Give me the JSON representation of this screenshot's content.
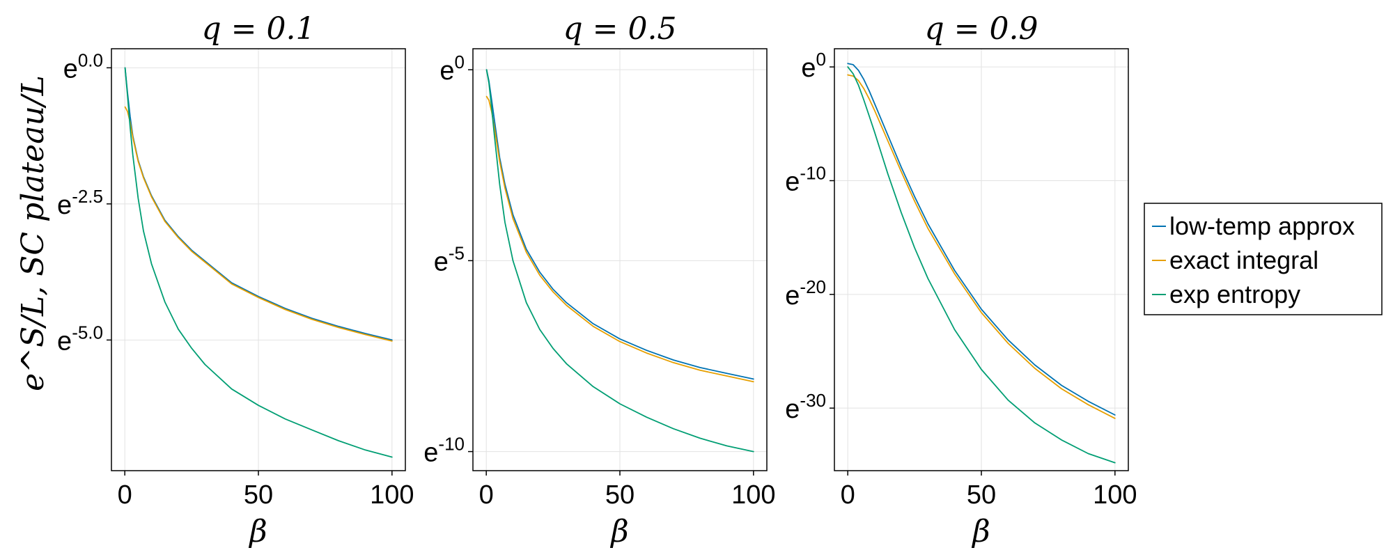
{
  "figure": {
    "ylabel": "e^S/L, SC plateau/L",
    "xlabel": "β"
  },
  "legend": {
    "placement": "right",
    "entries": [
      {
        "label": "low-temp approx",
        "color": "#0072b2"
      },
      {
        "label": "exact integral",
        "color": "#e69f00"
      },
      {
        "label": "exp entropy",
        "color": "#009e73"
      }
    ]
  },
  "chart_data": [
    {
      "type": "line",
      "title": "q = 0.1",
      "xlabel": "β",
      "xlim": [
        -5,
        105
      ],
      "ylim": [
        -7.4,
        0.35
      ],
      "xticks": [
        0,
        50,
        100
      ],
      "yticks": [
        {
          "value": 0,
          "label": "0.0"
        },
        {
          "value": -2.5,
          "label": "-2.5"
        },
        {
          "value": -5,
          "label": "-5.0"
        }
      ],
      "log_scale_base": "e",
      "grid": true,
      "series": [
        {
          "name": "low-temp approx",
          "color": "#0072b2",
          "x": [
            0.1,
            1,
            2,
            3,
            5,
            7,
            10,
            15,
            20,
            25,
            30,
            40,
            50,
            60,
            70,
            80,
            90,
            100
          ],
          "y": [
            0.0,
            -0.45,
            -0.9,
            -1.25,
            -1.7,
            -2.0,
            -2.35,
            -2.8,
            -3.1,
            -3.35,
            -3.55,
            -3.95,
            -4.2,
            -4.42,
            -4.6,
            -4.75,
            -4.88,
            -5.0
          ]
        },
        {
          "name": "exact integral",
          "color": "#e69f00",
          "x": [
            0.1,
            1,
            2,
            3,
            5,
            7,
            10,
            15,
            20,
            25,
            30,
            40,
            50,
            60,
            70,
            80,
            90,
            100
          ],
          "y": [
            -0.72,
            -0.8,
            -1.0,
            -1.28,
            -1.72,
            -2.02,
            -2.37,
            -2.82,
            -3.12,
            -3.37,
            -3.57,
            -3.97,
            -4.22,
            -4.44,
            -4.62,
            -4.77,
            -4.9,
            -5.02
          ]
        },
        {
          "name": "exp entropy",
          "color": "#009e73",
          "x": [
            0.1,
            1,
            2,
            3,
            5,
            7,
            10,
            15,
            20,
            25,
            30,
            40,
            50,
            60,
            70,
            80,
            90,
            100
          ],
          "y": [
            0.0,
            -0.5,
            -1.1,
            -1.6,
            -2.4,
            -3.0,
            -3.6,
            -4.3,
            -4.8,
            -5.15,
            -5.45,
            -5.9,
            -6.2,
            -6.45,
            -6.65,
            -6.85,
            -7.02,
            -7.15
          ]
        }
      ]
    },
    {
      "type": "line",
      "title": "q = 0.5",
      "xlabel": "β",
      "xlim": [
        -5,
        105
      ],
      "ylim": [
        -10.5,
        0.55
      ],
      "xticks": [
        0,
        50,
        100
      ],
      "yticks": [
        {
          "value": 0,
          "label": "0"
        },
        {
          "value": -5,
          "label": "-5"
        },
        {
          "value": -10,
          "label": "-10"
        }
      ],
      "log_scale_base": "e",
      "grid": true,
      "series": [
        {
          "name": "low-temp approx",
          "color": "#0072b2",
          "x": [
            0.1,
            1,
            2,
            3,
            5,
            7,
            10,
            15,
            20,
            25,
            30,
            40,
            50,
            60,
            70,
            80,
            90,
            100
          ],
          "y": [
            0.0,
            -0.3,
            -0.8,
            -1.3,
            -2.3,
            -3.0,
            -3.8,
            -4.7,
            -5.3,
            -5.75,
            -6.1,
            -6.65,
            -7.05,
            -7.35,
            -7.6,
            -7.8,
            -7.95,
            -8.1
          ]
        },
        {
          "name": "exact integral",
          "color": "#e69f00",
          "x": [
            0.1,
            1,
            2,
            3,
            5,
            7,
            10,
            15,
            20,
            25,
            30,
            40,
            50,
            60,
            70,
            80,
            90,
            100
          ],
          "y": [
            -0.7,
            -0.8,
            -1.1,
            -1.5,
            -2.4,
            -3.1,
            -3.9,
            -4.78,
            -5.38,
            -5.82,
            -6.17,
            -6.72,
            -7.12,
            -7.42,
            -7.67,
            -7.87,
            -8.02,
            -8.17
          ]
        },
        {
          "name": "exp entropy",
          "color": "#009e73",
          "x": [
            0.1,
            1,
            2,
            3,
            5,
            7,
            10,
            15,
            20,
            25,
            30,
            40,
            50,
            60,
            70,
            80,
            90,
            100
          ],
          "y": [
            0.0,
            -0.35,
            -1.0,
            -1.7,
            -3.0,
            -4.0,
            -5.0,
            -6.1,
            -6.8,
            -7.3,
            -7.7,
            -8.3,
            -8.75,
            -9.1,
            -9.4,
            -9.65,
            -9.85,
            -10.0
          ]
        }
      ]
    },
    {
      "type": "line",
      "title": "q = 0.9",
      "xlabel": "β",
      "xlim": [
        -5,
        105
      ],
      "ylim": [
        -35.5,
        1.6
      ],
      "xticks": [
        0,
        50,
        100
      ],
      "yticks": [
        {
          "value": 0,
          "label": "0"
        },
        {
          "value": -10,
          "label": "-10"
        },
        {
          "value": -20,
          "label": "-20"
        },
        {
          "value": -30,
          "label": "-30"
        }
      ],
      "log_scale_base": "e",
      "grid": true,
      "series": [
        {
          "name": "low-temp approx",
          "color": "#0072b2",
          "x": [
            0,
            2,
            4,
            6,
            8,
            10,
            15,
            20,
            25,
            30,
            40,
            50,
            60,
            70,
            80,
            90,
            100
          ],
          "y": [
            0.3,
            0.2,
            -0.3,
            -1.1,
            -2.1,
            -3.2,
            -6.0,
            -8.8,
            -11.4,
            -13.8,
            -17.9,
            -21.3,
            -24.0,
            -26.2,
            -28.0,
            -29.4,
            -30.6
          ]
        },
        {
          "name": "exact integral",
          "color": "#e69f00",
          "x": [
            0,
            2,
            4,
            6,
            8,
            10,
            15,
            20,
            25,
            30,
            40,
            50,
            60,
            70,
            80,
            90,
            100
          ],
          "y": [
            -0.7,
            -0.8,
            -1.2,
            -1.9,
            -2.8,
            -3.8,
            -6.5,
            -9.2,
            -11.8,
            -14.2,
            -18.2,
            -21.6,
            -24.3,
            -26.5,
            -28.3,
            -29.7,
            -30.9
          ]
        },
        {
          "name": "exp entropy",
          "color": "#009e73",
          "x": [
            0,
            2,
            4,
            6,
            8,
            10,
            15,
            20,
            25,
            30,
            40,
            50,
            60,
            70,
            80,
            90,
            100
          ],
          "y": [
            0.0,
            -0.6,
            -1.6,
            -2.9,
            -4.3,
            -5.7,
            -9.4,
            -12.8,
            -15.9,
            -18.6,
            -23.1,
            -26.6,
            -29.3,
            -31.3,
            -32.8,
            -34.0,
            -34.8
          ]
        }
      ]
    }
  ]
}
